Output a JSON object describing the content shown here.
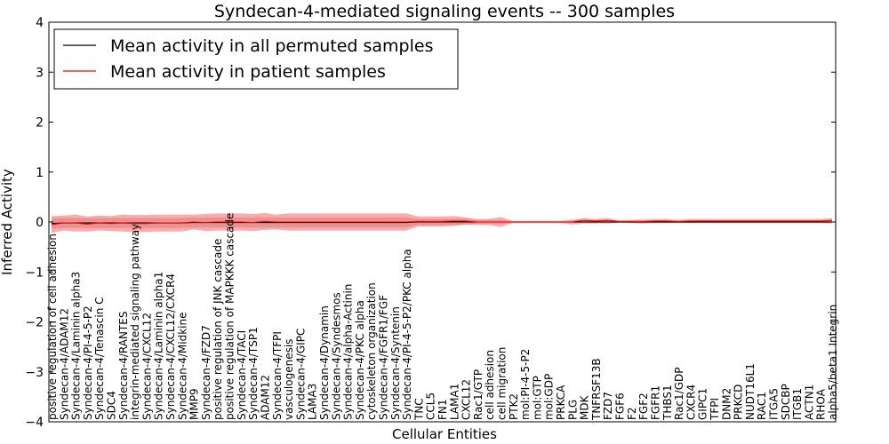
{
  "chart_data": {
    "type": "line",
    "title": "Syndecan-4-mediated signaling events -- 300 samples",
    "xlabel": "Cellular Entities",
    "ylabel": "Inferred Activity",
    "ylim": [
      -4,
      4
    ],
    "yticks": [
      4,
      3,
      2,
      1,
      0,
      -1,
      -2,
      -3,
      -4
    ],
    "legend_position": "upper-left",
    "categories": [
      "positive regulation of cell adhesion",
      "Syndecan-4/ADAM12",
      "Syndecan-4/Laminin alpha3",
      "Syndecan-4/PI-4-5-P2",
      "Syndecan-4/Tenascin C",
      "SDC4",
      "Syndecan-4/RANTES",
      "integrin-mediated signaling pathway",
      "Syndecan-4/CXCL12",
      "Syndecan-4/Laminin alpha1",
      "Syndecan-4/CXCL12/CXCR4",
      "Syndecan-4/Midkine",
      "MMP9",
      "Syndecan-4/FZD7",
      "positive regulation of JNK cascade",
      "positive regulation of MAPKKK cascade",
      "Syndecan-4/TACI",
      "Syndecan-4/TSP1",
      "ADAM12",
      "Syndecan-4/TFPI",
      "vasculogenesis",
      "Syndecan-4/GIPC",
      "LAMA3",
      "Syndecan-4/Dynamin",
      "Syndecan-4/Syndesmos",
      "Syndecan-4/alpha-Actinin",
      "Syndecan-4/PKC alpha",
      "cytoskeleton organization",
      "Syndecan-4/FGFR1/FGF",
      "Syndecan-4/Syntenin",
      "Syndecan-4/PI-4-5-P2/PKC alpha",
      "TNC",
      "CCL5",
      "FN1",
      "LAMA1",
      "CXCL12",
      "Rac1/GTP",
      "cell adhesion",
      "cell migration",
      "PTK2",
      "mol:PI-4-5-P2",
      "mol:GTP",
      "mol:GDP",
      "PRKCA",
      "PLG",
      "MDK",
      "TNFRSF13B",
      "FZD7",
      "FGF6",
      "F2",
      "FGF2",
      "FGFR1",
      "THBS1",
      "Rac1/GDP",
      "CXCR4",
      "GIPC1",
      "TFPI",
      "DNM2",
      "PRKCD",
      "NUDT16L1",
      "RAC1",
      "ITGA5",
      "SDCBP",
      "ITGB1",
      "ACTN1",
      "RHOA",
      "alpha5/beta1 Integrin"
    ],
    "series": [
      {
        "name": "Mean activity in all permuted samples",
        "color": "#000000",
        "values": [
          -0.03,
          -0.02,
          -0.02,
          -0.02,
          -0.02,
          -0.02,
          -0.02,
          -0.02,
          -0.02,
          -0.02,
          -0.02,
          -0.02,
          -0.01,
          -0.01,
          -0.01,
          -0.01,
          -0.01,
          -0.01,
          -0.01,
          -0.01,
          -0.01,
          -0.01,
          -0.01,
          -0.01,
          -0.01,
          -0.01,
          -0.01,
          -0.01,
          -0.01,
          -0.01,
          -0.01,
          0.0,
          0.0,
          0.0,
          0.0,
          0.0,
          0.0,
          0.0,
          0.0,
          0.0,
          0.0,
          0.0,
          0.0,
          0.0,
          0.0,
          0.0,
          0.0,
          0.0,
          0.0,
          0.0,
          0.0,
          0.0,
          0.0,
          0.0,
          0.0,
          0.0,
          0.0,
          0.0,
          0.0,
          0.0,
          0.0,
          0.0,
          0.0,
          0.0,
          0.0,
          0.0,
          0.0
        ]
      },
      {
        "name": "Mean activity in patient samples",
        "color": "#ff0000",
        "values": [
          -0.05,
          -0.02,
          -0.02,
          -0.04,
          -0.02,
          -0.03,
          -0.02,
          -0.03,
          -0.03,
          -0.02,
          -0.02,
          -0.02,
          0.0,
          -0.01,
          0.0,
          0.0,
          0.0,
          -0.01,
          0.01,
          0.0,
          0.0,
          0.0,
          0.0,
          0.0,
          0.0,
          0.0,
          0.0,
          0.0,
          0.0,
          0.0,
          0.0,
          0.01,
          0.01,
          0.01,
          0.02,
          0.02,
          0.0,
          0.0,
          0.0,
          0.0,
          0.0,
          0.0,
          0.0,
          0.0,
          0.0,
          0.03,
          0.02,
          0.03,
          0.01,
          0.01,
          0.01,
          0.02,
          0.02,
          0.01,
          0.02,
          0.02,
          0.02,
          0.02,
          0.02,
          0.02,
          0.02,
          0.02,
          0.02,
          0.02,
          0.02,
          0.02,
          0.03
        ]
      }
    ],
    "permuted_band_half_width": [
      0.1,
      0.1,
      0.1,
      0.1,
      0.1,
      0.1,
      0.1,
      0.1,
      0.1,
      0.1,
      0.1,
      0.1,
      0.1,
      0.1,
      0.1,
      0.1,
      0.1,
      0.1,
      0.1,
      0.1,
      0.1,
      0.1,
      0.1,
      0.1,
      0.1,
      0.1,
      0.1,
      0.1,
      0.1,
      0.1,
      0.1,
      0.06,
      0.06,
      0.06,
      0.06,
      0.06,
      0.04,
      0.04,
      0.04,
      0.02,
      0.02,
      0.02,
      0.02,
      0.02,
      0.06,
      0.04,
      0.04,
      0.04,
      0.02,
      0.02,
      0.02,
      0.02,
      0.02,
      0.02,
      0.02,
      0.02,
      0.02,
      0.02,
      0.02,
      0.02,
      0.02,
      0.02,
      0.02,
      0.02,
      0.02,
      0.02,
      0.04
    ],
    "patient_band_half_width": [
      0.17,
      0.15,
      0.17,
      0.15,
      0.15,
      0.15,
      0.17,
      0.17,
      0.17,
      0.17,
      0.17,
      0.17,
      0.15,
      0.17,
      0.17,
      0.17,
      0.17,
      0.17,
      0.17,
      0.15,
      0.17,
      0.17,
      0.17,
      0.17,
      0.17,
      0.17,
      0.17,
      0.17,
      0.17,
      0.17,
      0.17,
      0.1,
      0.1,
      0.1,
      0.1,
      0.07,
      0.06,
      0.06,
      0.1,
      0.02,
      0.02,
      0.02,
      0.02,
      0.02,
      0.03,
      0.05,
      0.04,
      0.05,
      0.02,
      0.03,
      0.04,
      0.04,
      0.04,
      0.03,
      0.04,
      0.04,
      0.04,
      0.04,
      0.04,
      0.04,
      0.04,
      0.04,
      0.04,
      0.04,
      0.04,
      0.04,
      0.05
    ]
  }
}
